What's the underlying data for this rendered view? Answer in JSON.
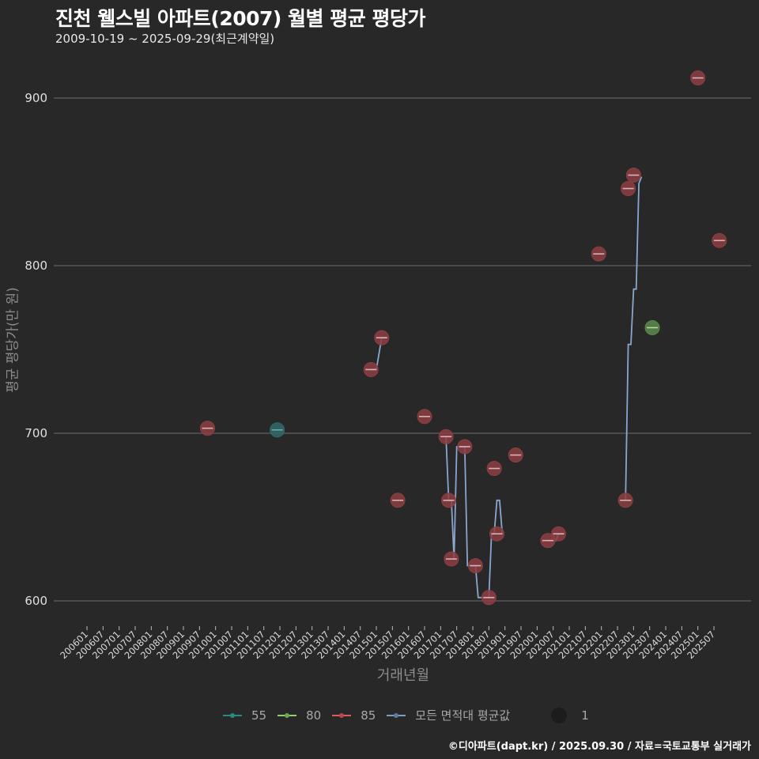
{
  "header": {
    "title": "진천 웰스빌 아파트(2007) 월별 평균 평당가",
    "subtitle": "2009-10-19 ~ 2025-09-29(최근계약일)"
  },
  "axes": {
    "xlabel": "거래년월",
    "ylabel": "평균 평당가(만 원)"
  },
  "legend": {
    "items": [
      {
        "label": "55",
        "color": "#2a9d8f"
      },
      {
        "label": "80",
        "color": "#8fd16a"
      },
      {
        "label": "85",
        "color": "#e05a5a"
      },
      {
        "label": "모든 면적대 평균값",
        "color": "#7f9cc4"
      }
    ],
    "size_label": "1"
  },
  "footer": "©디아파트(dapt.kr) / 2025.09.30 / 자료=국토교통부 실거래가",
  "colors": {
    "background": "#282828",
    "grid": "#5e5e5e",
    "s55": "#2f6b66",
    "s80": "#5b8a4c",
    "s85": "#8c3e42",
    "avg_line": "#8aa6d0"
  },
  "chart_data": {
    "type": "scatter",
    "title": "진천 웰스빌 아파트(2007) 월별 평균 평당가",
    "subtitle": "2009-10-19 ~ 2025-09-29(최근계약일)",
    "xlabel": "거래년월",
    "ylabel": "평균 평당가(만 원)",
    "x_tick_labels": [
      "200601",
      "200607",
      "200701",
      "200707",
      "200801",
      "200807",
      "200901",
      "200907",
      "201001",
      "201007",
      "201101",
      "201107",
      "201201",
      "201207",
      "201301",
      "201307",
      "201401",
      "201407",
      "201501",
      "201507",
      "201601",
      "201607",
      "201701",
      "201707",
      "201801",
      "201807",
      "201901",
      "201907",
      "202001",
      "202007",
      "202101",
      "202107",
      "202201",
      "202207",
      "202301",
      "202307",
      "202401",
      "202407",
      "202501",
      "202507"
    ],
    "y_ticks": [
      600,
      700,
      800,
      900
    ],
    "ylim": [
      583,
      925
    ],
    "grid": "horizontal",
    "legend_position": "bottom",
    "series": [
      {
        "name": "55",
        "points": [
          {
            "x": "201112",
            "y": 702
          }
        ]
      },
      {
        "name": "80",
        "points": [
          {
            "x": "202308",
            "y": 763
          }
        ]
      },
      {
        "name": "85",
        "points": [
          {
            "x": "200910",
            "y": 703
          },
          {
            "x": "201411",
            "y": 738
          },
          {
            "x": "201503",
            "y": 757
          },
          {
            "x": "201509",
            "y": 660
          },
          {
            "x": "201607",
            "y": 710
          },
          {
            "x": "201703",
            "y": 698
          },
          {
            "x": "201704",
            "y": 660
          },
          {
            "x": "201705",
            "y": 625
          },
          {
            "x": "201710",
            "y": 692
          },
          {
            "x": "201802",
            "y": 621
          },
          {
            "x": "201807",
            "y": 602
          },
          {
            "x": "201809",
            "y": 679
          },
          {
            "x": "201810",
            "y": 640
          },
          {
            "x": "201905",
            "y": 687
          },
          {
            "x": "202005",
            "y": 636
          },
          {
            "x": "202009",
            "y": 640
          },
          {
            "x": "202112",
            "y": 807
          },
          {
            "x": "202210",
            "y": 660
          },
          {
            "x": "202211",
            "y": 846
          },
          {
            "x": "202301",
            "y": 854
          },
          {
            "x": "202501",
            "y": 912
          },
          {
            "x": "202509",
            "y": 815
          }
        ]
      },
      {
        "name": "모든 면적대 평균값",
        "type": "step-line",
        "segments": [
          [
            {
              "x": "201411",
              "y": 738
            },
            {
              "x": "201501",
              "y": 738
            },
            {
              "x": "201503",
              "y": 757
            },
            {
              "x": "201505",
              "y": 757
            }
          ],
          [
            {
              "x": "201703",
              "y": 698
            },
            {
              "x": "201704",
              "y": 660
            },
            {
              "x": "201705",
              "y": 660
            },
            {
              "x": "201706",
              "y": 625
            },
            {
              "x": "201707",
              "y": 692
            },
            {
              "x": "201710",
              "y": 692
            },
            {
              "x": "201711",
              "y": 621
            },
            {
              "x": "201802",
              "y": 621
            },
            {
              "x": "201803",
              "y": 602
            },
            {
              "x": "201807",
              "y": 602
            },
            {
              "x": "201808",
              "y": 640
            },
            {
              "x": "201809",
              "y": 640
            },
            {
              "x": "201810",
              "y": 660
            },
            {
              "x": "201811",
              "y": 660
            },
            {
              "x": "201812",
              "y": 640
            }
          ],
          [
            {
              "x": "202005",
              "y": 636
            },
            {
              "x": "202008",
              "y": 636
            },
            {
              "x": "202009",
              "y": 640
            },
            {
              "x": "202011",
              "y": 640
            }
          ],
          [
            {
              "x": "202210",
              "y": 660
            },
            {
              "x": "202211",
              "y": 753
            },
            {
              "x": "202212",
              "y": 753
            },
            {
              "x": "202301",
              "y": 786
            },
            {
              "x": "202302",
              "y": 786
            },
            {
              "x": "202303",
              "y": 849
            },
            {
              "x": "202304",
              "y": 853
            }
          ]
        ]
      }
    ],
    "size_legend": [
      {
        "label": "1"
      }
    ]
  }
}
